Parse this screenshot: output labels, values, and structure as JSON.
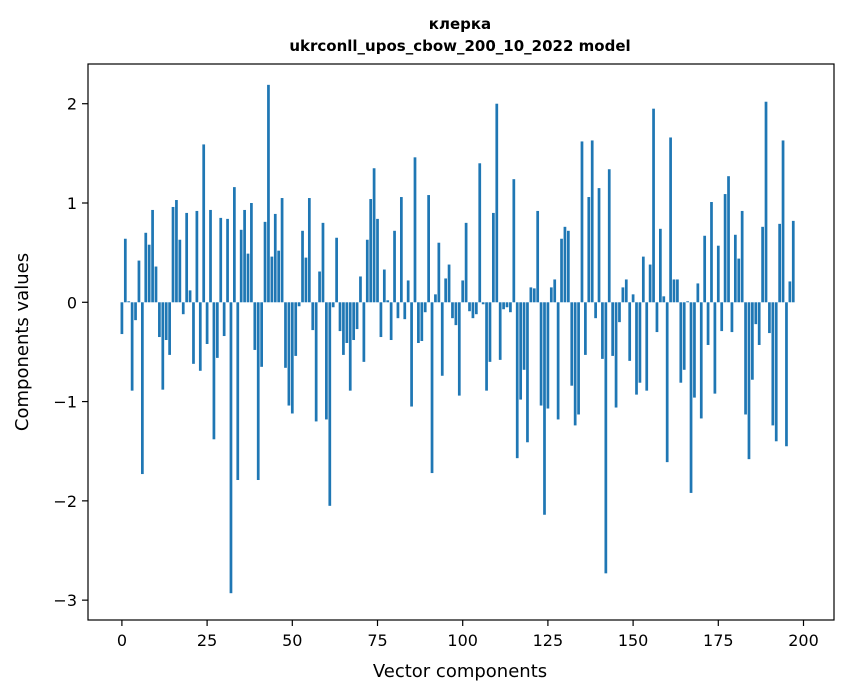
{
  "chart_data": {
    "type": "bar",
    "title": "клерка",
    "subtitle": "ukrconll_upos_cbow_200_10_2022 model",
    "xlabel": "Vector components",
    "ylabel": "Components values",
    "xlim": [
      -9.95,
      208.95
    ],
    "ylim": [
      -3.2,
      2.4
    ],
    "xticks": [
      0,
      25,
      50,
      75,
      100,
      125,
      150,
      175,
      200
    ],
    "yticks": [
      -3,
      -2,
      -1,
      0,
      1,
      2
    ],
    "ytick_labels": [
      "−3",
      "−2",
      "−1",
      "0",
      "1",
      "2"
    ],
    "bar_color": "#1f77b4",
    "values": [
      -0.32,
      0.64,
      0.01,
      -0.89,
      -0.18,
      0.42,
      -1.73,
      0.7,
      0.58,
      0.93,
      0.36,
      -0.35,
      -0.88,
      -0.38,
      -0.53,
      0.96,
      1.03,
      0.63,
      -0.12,
      0.9,
      0.12,
      -0.62,
      0.92,
      -0.69,
      1.59,
      -0.42,
      0.93,
      -1.38,
      -0.56,
      0.85,
      -0.34,
      0.84,
      -2.93,
      1.16,
      -1.79,
      0.73,
      0.93,
      0.49,
      1.0,
      -0.48,
      -1.79,
      -0.65,
      0.81,
      2.19,
      0.46,
      0.89,
      0.52,
      1.05,
      -0.66,
      -1.04,
      -1.12,
      -0.54,
      -0.04,
      0.72,
      0.45,
      1.05,
      -0.28,
      -1.2,
      0.31,
      0.8,
      -1.18,
      -2.05,
      -0.05,
      0.65,
      -0.29,
      -0.53,
      -0.41,
      -0.89,
      -0.38,
      -0.27,
      0.26,
      -0.6,
      0.63,
      1.04,
      1.35,
      0.84,
      -0.35,
      0.33,
      0.02,
      -0.38,
      0.72,
      -0.16,
      1.06,
      -0.17,
      0.22,
      -1.05,
      1.46,
      -0.41,
      -0.39,
      -0.1,
      1.08,
      -1.72,
      0.08,
      0.6,
      -0.74,
      0.24,
      0.38,
      -0.16,
      -0.23,
      -0.94,
      0.22,
      0.8,
      -0.09,
      -0.16,
      -0.12,
      1.4,
      -0.02,
      -0.89,
      -0.6,
      0.9,
      2.0,
      -0.58,
      -0.07,
      -0.05,
      -0.1,
      1.24,
      -1.57,
      -0.98,
      -0.68,
      -1.41,
      0.15,
      0.14,
      0.92,
      -1.04,
      -2.14,
      -1.07,
      0.15,
      0.23,
      -1.18,
      0.64,
      0.76,
      0.72,
      -0.84,
      -1.24,
      -1.13,
      1.62,
      -0.53,
      1.06,
      1.63,
      -0.16,
      1.15,
      -0.57,
      -2.73,
      1.34,
      -0.54,
      -1.06,
      -0.2,
      0.15,
      0.23,
      -0.59,
      0.08,
      -0.93,
      -0.81,
      0.46,
      -0.89,
      0.38,
      1.95,
      -0.3,
      0.74,
      0.06,
      -1.61,
      1.66,
      0.23,
      0.23,
      -0.81,
      -0.68,
      0.01,
      -1.92,
      -0.96,
      0.19,
      -1.17,
      0.67,
      -0.43,
      1.01,
      -0.92,
      0.57,
      -0.29,
      1.09,
      1.27,
      -0.3,
      0.68,
      0.44,
      0.92,
      -1.13,
      -1.58,
      -0.78,
      -0.22,
      -0.43,
      0.76,
      2.02,
      -0.31,
      -1.24,
      -1.4,
      0.79,
      1.63,
      -1.45,
      0.21,
      0.82
    ]
  }
}
